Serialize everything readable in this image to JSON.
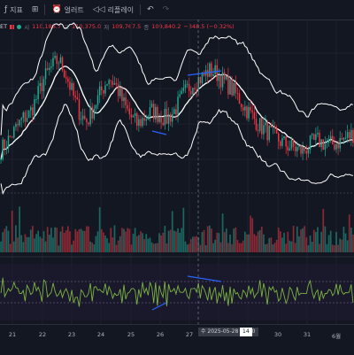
{
  "toolbar": {
    "indicators_label": "지표",
    "alert_label": "얼러트",
    "replay_label": "리플레이"
  },
  "legend": {
    "symbol": "ET",
    "open_k": "시",
    "open_v": "110,188.7",
    "high_k": "고",
    "high_v": "110,375.0",
    "low_k": "저",
    "low_v": "109,767.5",
    "close_k": "종",
    "close_v": "109,840.2",
    "change": "−348.5 (−0.32%)"
  },
  "xaxis": {
    "labels": [
      "21",
      "22",
      "23",
      "24",
      "25",
      "26",
      "27",
      "30",
      "31",
      "6월"
    ],
    "crosshair": "수 2025-05-28  03:00",
    "extra": "14"
  },
  "colors": {
    "bg": "#131722",
    "up": "#22ab94",
    "down": "#f23645",
    "band": "#ffffff",
    "basis": "#ffffff",
    "osc": "#7cb342",
    "trendline": "#2962ff"
  },
  "chart_data": {
    "type": "candlestick",
    "instrument": "ET",
    "timeframe_note": "intraday, 2025-05-21 to 2025-06-01",
    "price_close_path": [
      104.5,
      105.2,
      106.0,
      106.8,
      107.2,
      108.4,
      109.8,
      110.6,
      111.2,
      110.2,
      108.6,
      107.2,
      106.6,
      107.8,
      108.9,
      109.9,
      109.3,
      108.0,
      107.0,
      106.4,
      106.9,
      107.4,
      107.1,
      106.8,
      107.3,
      108.2,
      109.1,
      109.6,
      109.9,
      110.4,
      110.2,
      109.6,
      109.1,
      108.4,
      107.6,
      107.0,
      106.3,
      105.9,
      105.5,
      105.1,
      104.8,
      104.6,
      104.4,
      104.9,
      105.2,
      105.0,
      104.9,
      105.1,
      105.4,
      105.7
    ],
    "bollinger_bands": "upper, basis, lower drawn as white lines",
    "volume_panel": true,
    "oscillator_panel": true,
    "annotations": [
      "trendline on price high (blue)",
      "trendline on price low (blue)",
      "trendline on oscillator (blue)"
    ]
  }
}
